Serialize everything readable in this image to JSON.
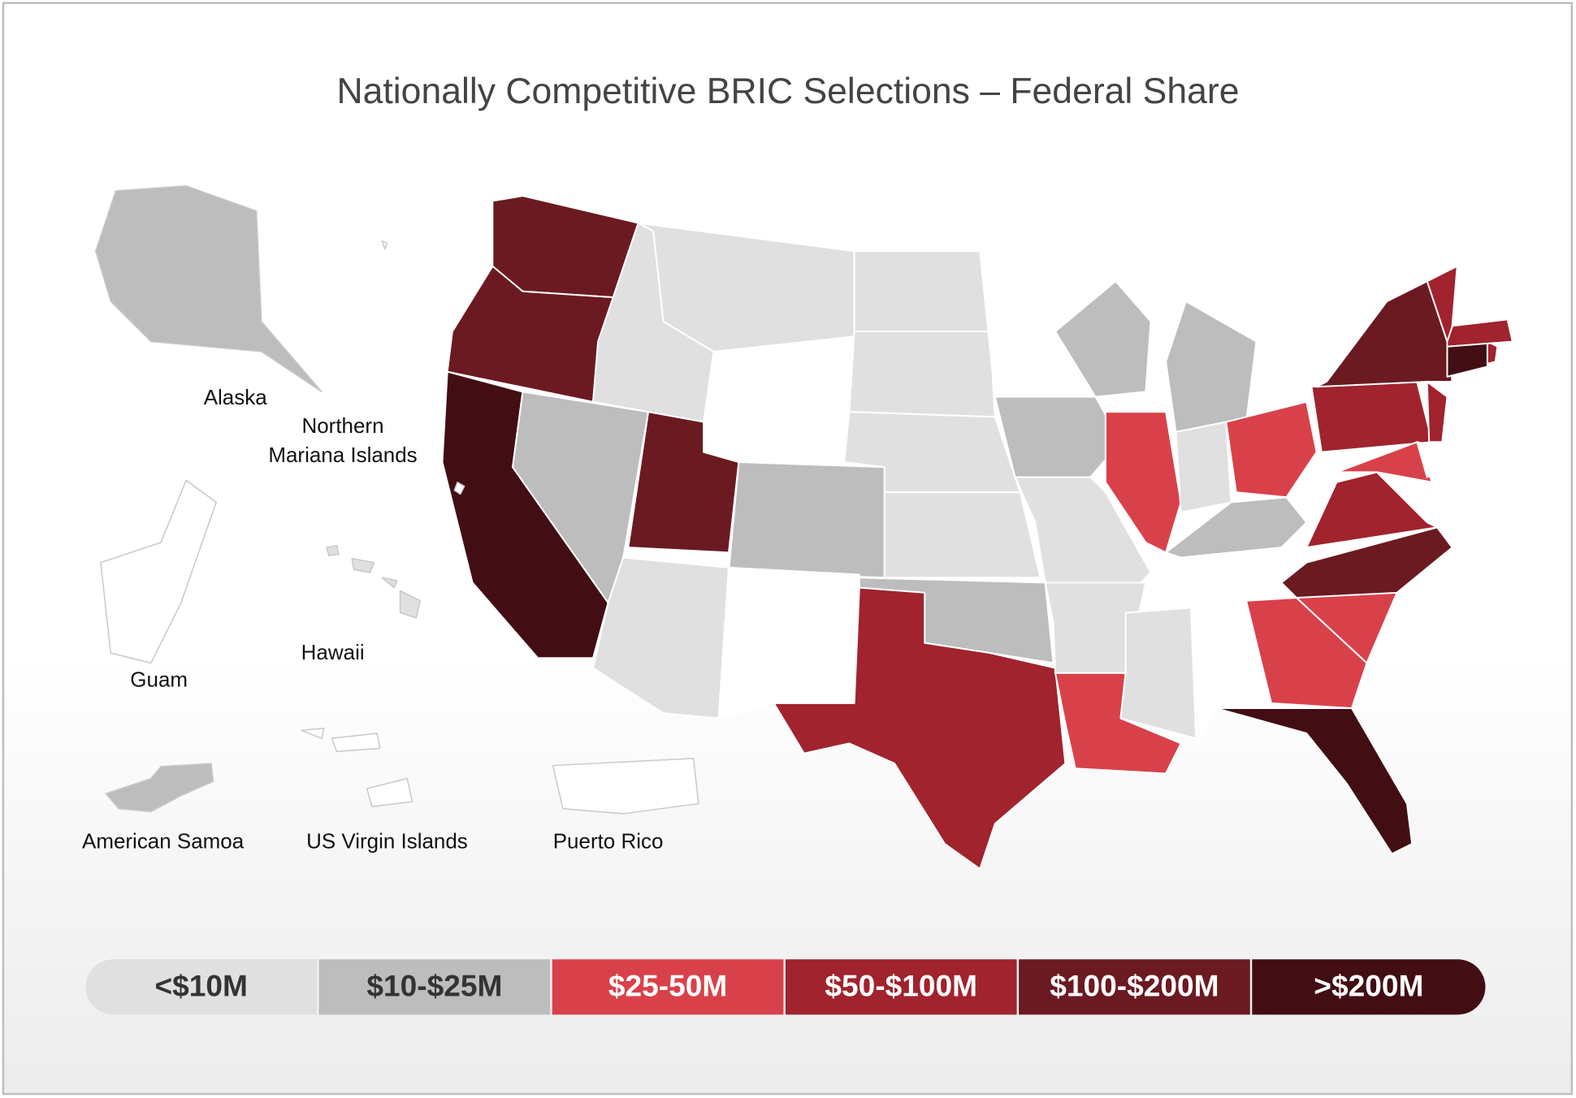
{
  "title": "Nationally Competitive BRIC Selections – Federal Share",
  "legend": [
    {
      "label": "<$10M",
      "color": "#e0e0e0",
      "text_color": "#333333"
    },
    {
      "label": "$10-$25M",
      "color": "#bdbdbd",
      "text_color": "#333333"
    },
    {
      "label": "$25-50M",
      "color": "#d9414a",
      "text_color": "#ffffff"
    },
    {
      "label": "$50-$100M",
      "color": "#a0232e",
      "text_color": "#ffffff"
    },
    {
      "label": "$100-$200M",
      "color": "#6b1a22",
      "text_color": "#ffffff"
    },
    {
      "label": ">$200M",
      "color": "#420e14",
      "text_color": "#ffffff"
    }
  ],
  "no_data_color": "#ffffff",
  "regions": [
    4,
    4,
    5,
    1,
    0,
    0,
    null,
    4,
    1,
    0,
    null,
    0,
    0,
    0,
    0,
    1,
    3,
    null,
    1,
    0,
    0,
    2,
    1,
    2,
    1,
    0,
    2,
    1,
    null,
    0,
    null,
    2,
    5,
    2,
    4,
    3,
    null,
    3,
    2,
    3,
    4,
    5,
    3,
    3,
    3,
    null,
    null,
    null
  ],
  "territories": [
    {
      "label": [
        "Alaska"
      ],
      "bin": 1
    },
    {
      "label": [
        "Northern",
        "Mariana Islands"
      ],
      "bin": null
    },
    {
      "label": [
        "Hawaii"
      ],
      "bin": 0
    },
    {
      "label": [
        "Guam"
      ],
      "bin": null
    },
    {
      "label": [
        "American Samoa"
      ],
      "bin": 1
    },
    {
      "label": [
        "US Virgin Islands"
      ],
      "bin": null
    },
    {
      "label": [
        "Puerto Rico"
      ],
      "bin": null
    }
  ]
}
